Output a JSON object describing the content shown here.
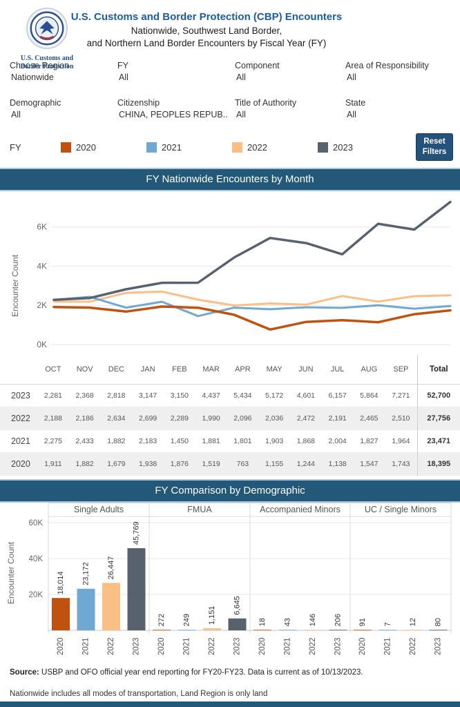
{
  "header": {
    "title": "U.S. Customs and Border Protection (CBP) Encounters",
    "subtitle1": "Nationwide, Southwest Land Border,",
    "subtitle2": "and Northern Land Border Encounters by Fiscal Year (FY)",
    "logo_caption1": "U.S. Customs and",
    "logo_caption2": "Border Protection"
  },
  "filters": [
    {
      "label": "Choose Region",
      "value": "Nationwide"
    },
    {
      "label": "FY",
      "value": "All"
    },
    {
      "label": "Component",
      "value": "All"
    },
    {
      "label": "Area of Responsibility",
      "value": "All"
    },
    {
      "label": "Demographic",
      "value": "All"
    },
    {
      "label": "Citizenship",
      "value": "CHINA, PEOPLES REPUB.."
    },
    {
      "label": "Title of Authority",
      "value": "All"
    },
    {
      "label": "State",
      "value": "All"
    }
  ],
  "legend": {
    "label": "FY",
    "items": [
      {
        "year": "2020",
        "color": "#C1510E"
      },
      {
        "year": "2021",
        "color": "#6FA8D2"
      },
      {
        "year": "2022",
        "color": "#FBBE85"
      },
      {
        "year": "2023",
        "color": "#57626E"
      }
    ],
    "reset_line1": "Reset",
    "reset_line2": "Filters"
  },
  "chart_data": [
    {
      "type": "line",
      "title": "FY Nationwide Encounters by Month",
      "ylabel": "Encounter Count",
      "ylim": [
        0,
        7600
      ],
      "yticks": [
        {
          "label": "0K",
          "value": 0
        },
        {
          "label": "2K",
          "value": 2000
        },
        {
          "label": "4K",
          "value": 4000
        },
        {
          "label": "6K",
          "value": 6000
        }
      ],
      "x": [
        "OCT",
        "NOV",
        "DEC",
        "JAN",
        "FEB",
        "MAR",
        "APR",
        "MAY",
        "JUN",
        "JUL",
        "AUG",
        "SEP"
      ],
      "series": [
        {
          "name": "2020",
          "color": "#C1510E",
          "values": [
            1911,
            1882,
            1679,
            1938,
            1876,
            1519,
            763,
            1155,
            1244,
            1138,
            1547,
            1743
          ]
        },
        {
          "name": "2021",
          "color": "#6FA8D2",
          "values": [
            2275,
            2433,
            1882,
            2183,
            1450,
            1881,
            1801,
            1903,
            1868,
            2004,
            1827,
            1964
          ]
        },
        {
          "name": "2022",
          "color": "#FBBE85",
          "values": [
            2188,
            2186,
            2634,
            2699,
            2289,
            1990,
            2096,
            2036,
            2472,
            2191,
            2465,
            2510
          ]
        },
        {
          "name": "2023",
          "color": "#57626E",
          "values": [
            2281,
            2368,
            2818,
            3147,
            3150,
            4437,
            5434,
            5172,
            4601,
            6157,
            5864,
            7271
          ]
        }
      ],
      "legend_position": "top",
      "grid": true
    },
    {
      "type": "bar",
      "title": "FY Comparison by Demographic",
      "ylabel": "Encounter Count",
      "ylim": [
        0,
        70000
      ],
      "yticks": [
        {
          "label": "20K",
          "value": 20000
        },
        {
          "label": "40K",
          "value": 40000
        },
        {
          "label": "60K",
          "value": 60000
        }
      ],
      "years": [
        "2020",
        "2021",
        "2022",
        "2023"
      ],
      "groups": [
        {
          "name": "Single Adults",
          "values": [
            18014,
            23172,
            26447,
            45769
          ]
        },
        {
          "name": "FMUA",
          "values": [
            272,
            249,
            1151,
            6645
          ]
        },
        {
          "name": "Accompanied Minors",
          "values": [
            18,
            43,
            146,
            206
          ]
        },
        {
          "name": "UC / Single Minors",
          "values": [
            91,
            7,
            12,
            80
          ]
        }
      ],
      "grid": true
    }
  ],
  "table": {
    "columns": [
      "",
      "OCT",
      "NOV",
      "DEC",
      "JAN",
      "FEB",
      "MAR",
      "APR",
      "MAY",
      "JUN",
      "JUL",
      "AUG",
      "SEP",
      "Total"
    ],
    "rows": [
      {
        "year": "2023",
        "values": [
          2281,
          2368,
          2818,
          3147,
          3150,
          4437,
          5434,
          5172,
          4601,
          6157,
          5864,
          7271
        ],
        "total": 52700
      },
      {
        "year": "2022",
        "values": [
          2188,
          2186,
          2634,
          2699,
          2289,
          1990,
          2096,
          2036,
          2472,
          2191,
          2465,
          2510
        ],
        "total": 27756
      },
      {
        "year": "2021",
        "values": [
          2275,
          2433,
          1882,
          2183,
          1450,
          1881,
          1801,
          1903,
          1868,
          2004,
          1827,
          1964
        ],
        "total": 23471
      },
      {
        "year": "2020",
        "values": [
          1911,
          1882,
          1679,
          1938,
          1876,
          1519,
          763,
          1155,
          1244,
          1138,
          1547,
          1743
        ],
        "total": 18395
      }
    ]
  },
  "footer": {
    "source_label": "Source:",
    "source_text": " USBP and OFO official year end reporting for FY20-FY23. Data is current as of 10/13/2023.",
    "note": "Nationwide includes all modes of transportation, Land Region is only land"
  }
}
